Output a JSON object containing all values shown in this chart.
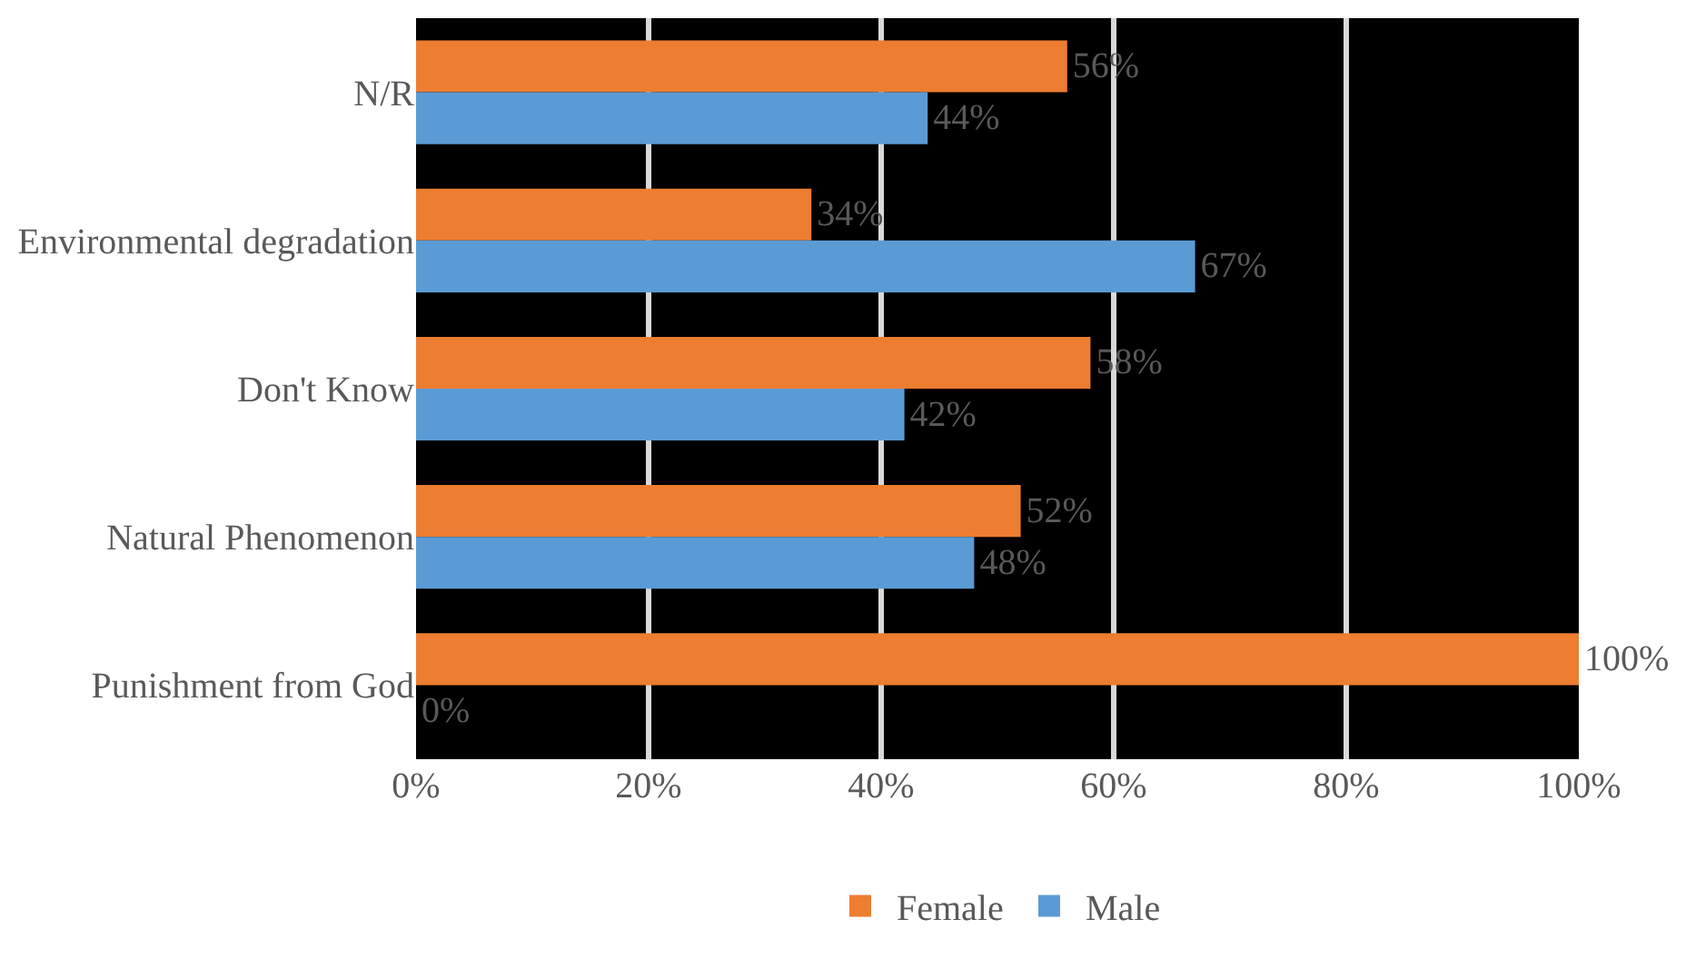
{
  "chart_data": {
    "type": "bar",
    "orientation": "horizontal",
    "categories": [
      "N/R",
      "Environmental degradation",
      "Don't Know",
      "Natural Phenomenon",
      "Punishment from God"
    ],
    "series": [
      {
        "name": "Female",
        "color": "#ed7d31",
        "values": [
          56,
          34,
          58,
          52,
          100
        ],
        "value_labels": [
          "56%",
          "34%",
          "58%",
          "52%",
          "100%"
        ]
      },
      {
        "name": "Male",
        "color": "#5b9bd5",
        "values": [
          44,
          67,
          42,
          48,
          0
        ],
        "value_labels": [
          "44%",
          "67%",
          "42%",
          "48%",
          "0%"
        ]
      }
    ],
    "xlim": [
      0,
      100
    ],
    "xticks": [
      {
        "value": 0,
        "label": "0%"
      },
      {
        "value": 20,
        "label": "20%"
      },
      {
        "value": 40,
        "label": "40%"
      },
      {
        "value": 60,
        "label": "60%"
      },
      {
        "value": 80,
        "label": "80%"
      },
      {
        "value": 100,
        "label": "100%"
      }
    ],
    "grid": "x",
    "legend": "bottom"
  }
}
